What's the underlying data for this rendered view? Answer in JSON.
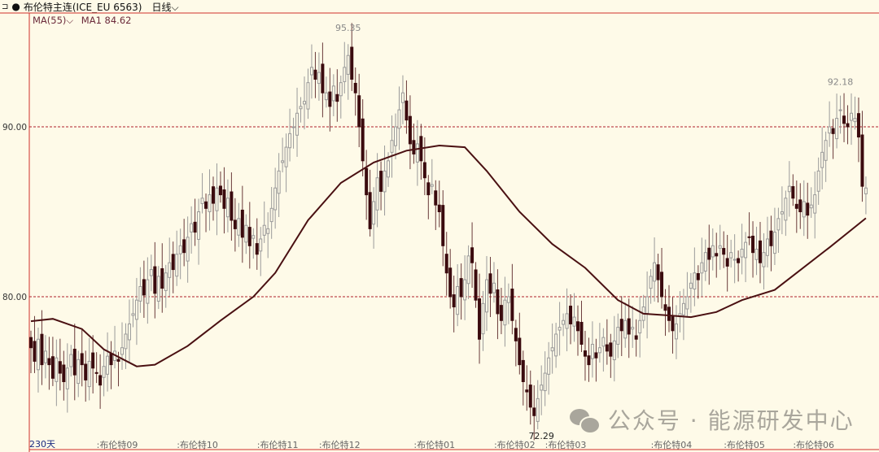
{
  "header": {
    "collapse_icon": "panel-toggle-icon",
    "bullet": "●",
    "symbol": "布伦特主连(ICE_EU 6563)",
    "period": "日线",
    "period_icon": "chevron-down-icon"
  },
  "indicator": {
    "name": "MA(55)",
    "name_icon": "chevron-down-icon",
    "line": "MA1 84.62"
  },
  "watermark": {
    "icon": "wechat-icon",
    "text": "公众号 · 能源研发中心"
  },
  "chart_data": {
    "type": "candlestick",
    "title": "布伦特主连(ICE_EU 6563)",
    "ylim": [
      71.5,
      96.5
    ],
    "yticks": [
      {
        "value": 80,
        "label": "80.00"
      },
      {
        "value": 90,
        "label": "90.00"
      }
    ],
    "grid": "dashed horizontal at labeled ticks",
    "colors": {
      "up": "#9a9a9a",
      "down": "#3b0b0e",
      "ma": "#4a1012",
      "grid": "#b0202a",
      "axis": "#d0302a"
    },
    "days_label": "230天",
    "month_labels": [
      {
        "day": 18,
        "label": "布伦特09"
      },
      {
        "day": 40,
        "label": "布伦特10"
      },
      {
        "day": 62,
        "label": "布伦特11"
      },
      {
        "day": 79,
        "label": "布伦特12"
      },
      {
        "day": 105,
        "label": "布伦特01"
      },
      {
        "day": 127,
        "label": "布伦特02"
      },
      {
        "day": 141,
        "label": "布伦特03"
      },
      {
        "day": 170,
        "label": "布伦特04"
      },
      {
        "day": 190,
        "label": "布伦特05"
      },
      {
        "day": 209,
        "label": "布伦特06"
      }
    ],
    "annotations": [
      {
        "day": 87,
        "value": 95.35,
        "label": "95.35",
        "pos": "above"
      },
      {
        "day": 140,
        "value": 72.29,
        "label": "72.29",
        "pos": "below"
      },
      {
        "day": 222,
        "value": 92.18,
        "label": "92.18",
        "pos": "above"
      }
    ],
    "closes": [
      77,
      76.2,
      77.5,
      76.0,
      76.8,
      76.0,
      75.2,
      76.4,
      75.5,
      75.0,
      75.8,
      76.6,
      75.4,
      76.3,
      76.0,
      75.1,
      76.2,
      75.8,
      75.5,
      74.8,
      75.9,
      76.5,
      76.0,
      76.8,
      76.2,
      77.0,
      77.8,
      78.4,
      79.0,
      79.8,
      80.6,
      80.1,
      81.0,
      81.6,
      80.2,
      81.2,
      80.5,
      81.4,
      82.0,
      81.6,
      82.5,
      83.0,
      82.6,
      83.5,
      84.3,
      83.8,
      85.0,
      85.8,
      85.2,
      86.0,
      85.5,
      86.4,
      86.0,
      85.2,
      85.8,
      84.5,
      84.0,
      84.6,
      83.5,
      84.2,
      83.0,
      83.6,
      82.5,
      83.4,
      84.2,
      84.0,
      85.2,
      86.4,
      87.4,
      88.0,
      88.8,
      89.6,
      90.0,
      90.8,
      91.2,
      91.5,
      92.6,
      93.5,
      92.8,
      93.2,
      92.0,
      92.0,
      91.2,
      92.4,
      91.5,
      92.6,
      93.5,
      94.2,
      92.8,
      92.0,
      90.0,
      88.0,
      86.0,
      84.0,
      85.6,
      87.0,
      86.2,
      87.4,
      88.0,
      89.2,
      90.0,
      91.0,
      92.0,
      90.4,
      89.0,
      88.4,
      89.0,
      88.0,
      87.0,
      86.0,
      86.6,
      85.4,
      85.0,
      83.0,
      81.4,
      80.0,
      79.4,
      80.6,
      80.0,
      81.0,
      82.4,
      82.0,
      79.8,
      77.5,
      79.6,
      81.0,
      80.2,
      80.8,
      79.0,
      78.6,
      79.8,
      80.0,
      78.6,
      77.4,
      76.0,
      75.0,
      74.4,
      73.5,
      73.0,
      74.0,
      74.8,
      75.5,
      76.4,
      77.0,
      77.8,
      78.2,
      78.6,
      79.0,
      78.4,
      78.8,
      78.0,
      77.2,
      76.5,
      76.0,
      77.2,
      76.4,
      77.0,
      77.6,
      76.8,
      76.5,
      77.4,
      78.2,
      78.0,
      78.6,
      77.8,
      78.2,
      77.5,
      78.6,
      79.4,
      80.0,
      81.2,
      82.0,
      81.0,
      80.0,
      79.2,
      78.6,
      78.0,
      78.4,
      79.0,
      79.6,
      80.0,
      80.8,
      81.4,
      81.0,
      82.0,
      82.6,
      82.2,
      83.0,
      82.4,
      83.0,
      82.5,
      81.8,
      82.6,
      82.2,
      82.0,
      82.8,
      83.2,
      83.5,
      82.6,
      82.8,
      82.0,
      82.6,
      83.4,
      83.0,
      83.8,
      84.6,
      85.0,
      85.8,
      86.5,
      85.8,
      85.2,
      85.0,
      85.6,
      84.8,
      85.4,
      86.0,
      87.4,
      88.5,
      89.2,
      90.0,
      89.6,
      90.5,
      91.0,
      90.2,
      90.0,
      90.8,
      90.5,
      89.4,
      86.5,
      86.4
    ],
    "ma55": [
      [
        0,
        78.56
      ],
      [
        6,
        78.7
      ],
      [
        14,
        78.1
      ],
      [
        20,
        76.9
      ],
      [
        29,
        75.9
      ],
      [
        34,
        76.0
      ],
      [
        43,
        77.1
      ],
      [
        52,
        78.6
      ],
      [
        61,
        80.0
      ],
      [
        67,
        81.4
      ],
      [
        76,
        84.5
      ],
      [
        85,
        86.7
      ],
      [
        94,
        87.9
      ],
      [
        103,
        88.6
      ],
      [
        112,
        88.9
      ],
      [
        119,
        88.8
      ],
      [
        125,
        87.4
      ],
      [
        134,
        85.0
      ],
      [
        143,
        83.1
      ],
      [
        152,
        81.7
      ],
      [
        161,
        79.8
      ],
      [
        168,
        79.0
      ],
      [
        175,
        78.9
      ],
      [
        181,
        78.8
      ],
      [
        188,
        79.1
      ],
      [
        195,
        79.8
      ],
      [
        204,
        80.4
      ],
      [
        210,
        81.4
      ],
      [
        219,
        82.9
      ],
      [
        229,
        84.62
      ]
    ]
  }
}
